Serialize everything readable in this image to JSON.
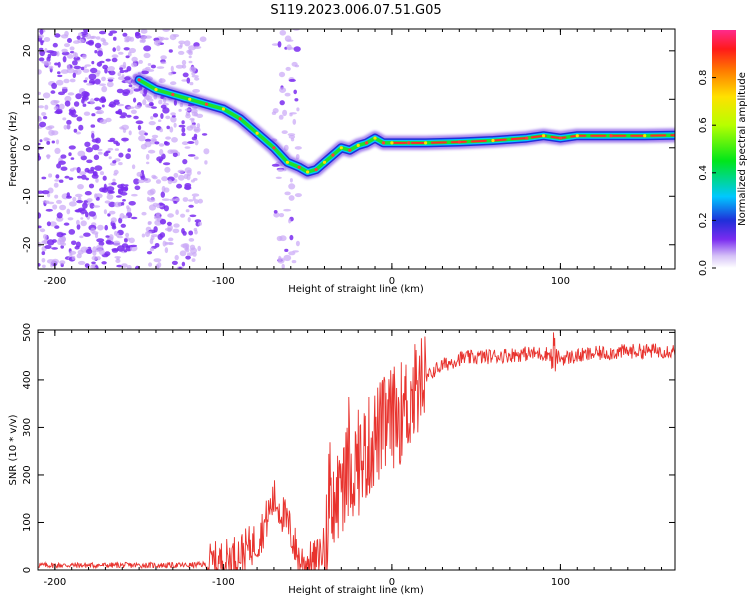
{
  "title": "S119.2023.006.07.51.G05",
  "colors": {
    "snr_line": "#e8332e",
    "ridge_core": "#ff2a2a",
    "frame": "#000000",
    "scatter": "#7a2cf0",
    "scatter_light": "#c9a6f7"
  },
  "chart_data": [
    {
      "type": "heatmap",
      "xlabel": "Height of straight line (km)",
      "ylabel": "Frequency (Hz)",
      "xlim": [
        -210,
        168
      ],
      "ylim": [
        -25,
        24.5
      ],
      "x_ticks": [
        -200,
        -100,
        0,
        100
      ],
      "x_tick_labels": [
        "-200",
        "-100",
        "0",
        "100"
      ],
      "y_ticks": [
        20,
        10,
        0,
        -10,
        -20
      ],
      "y_tick_labels": [
        "20",
        "10",
        "0",
        "-10",
        "-20"
      ],
      "grid": false,
      "colorbar": {
        "label": "Normalized spectral amplitude",
        "range": [
          0,
          1
        ],
        "ticks": [
          0.0,
          0.2,
          0.4,
          0.6,
          0.8
        ],
        "tick_labels": [
          "0.0",
          "0.2",
          "0.4",
          "0.6",
          "0.8"
        ]
      },
      "ridge": {
        "x": [
          -150,
          -140,
          -130,
          -120,
          -110,
          -100,
          -90,
          -80,
          -70,
          -62,
          -55,
          -50,
          -45,
          -40,
          -35,
          -30,
          -25,
          -20,
          -15,
          -10,
          -5,
          0,
          10,
          20,
          40,
          60,
          80,
          90,
          100,
          110,
          130,
          150,
          168
        ],
        "y": [
          14,
          12,
          11,
          10,
          9,
          8,
          6,
          3,
          0,
          -3,
          -4,
          -5,
          -4.5,
          -3,
          -1.5,
          0,
          -0.5,
          0.5,
          1,
          2,
          1,
          1,
          1,
          1,
          1.2,
          1.5,
          2,
          2.5,
          2,
          2.5,
          2.5,
          2.5,
          2.6
        ]
      },
      "scatter_region_x": [
        -210,
        -115
      ],
      "scatter_region_secondary_x": [
        -70,
        -55
      ]
    },
    {
      "type": "line",
      "xlabel": "Height of straight line (km)",
      "ylabel": "SNR (10 * v/v)",
      "xlim": [
        -210,
        168
      ],
      "ylim": [
        0,
        505
      ],
      "x_ticks": [
        -200,
        -100,
        0,
        100
      ],
      "x_tick_labels": [
        "-200",
        "-100",
        "0",
        "100"
      ],
      "y_ticks": [
        0,
        100,
        200,
        300,
        400,
        500
      ],
      "y_tick_labels": [
        "0",
        "100",
        "200",
        "300",
        "400",
        "500"
      ],
      "grid": false,
      "series": [
        {
          "x": [
            -210,
            -180,
            -150,
            -120,
            -110,
            -100,
            -90,
            -80,
            -75,
            -70,
            -65,
            -60,
            -55,
            -50,
            -45,
            -40,
            -35,
            -30,
            -25,
            -20,
            -15,
            -10,
            -5,
            0,
            5,
            10,
            15,
            20,
            25,
            30,
            40,
            60,
            80,
            95,
            100,
            120,
            140,
            168
          ],
          "y": [
            10,
            10,
            10,
            10,
            12,
            20,
            35,
            60,
            100,
            150,
            120,
            80,
            20,
            15,
            20,
            50,
            120,
            180,
            210,
            220,
            250,
            280,
            300,
            320,
            330,
            350,
            380,
            400,
            420,
            430,
            445,
            450,
            455,
            455,
            445,
            455,
            460,
            462
          ]
        }
      ]
    }
  ]
}
